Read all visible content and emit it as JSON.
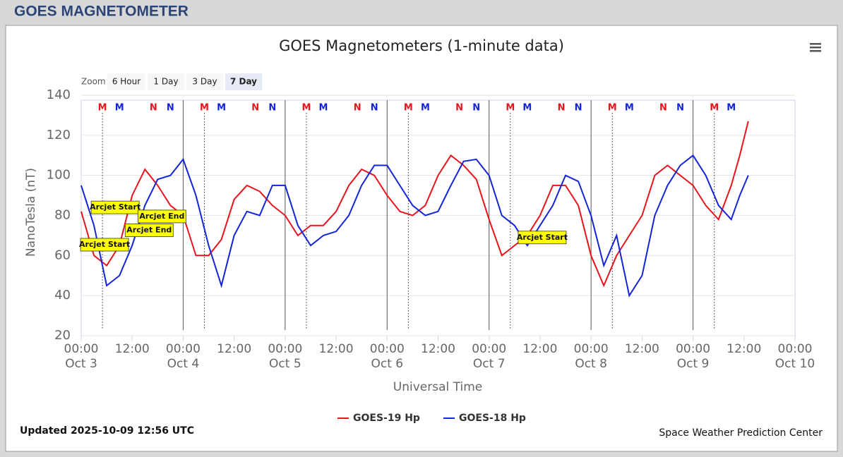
{
  "header": {
    "title": "GOES MAGNETOMETER"
  },
  "chart_data": {
    "type": "line",
    "title": "GOES Magnetometers (1-minute data)",
    "zoom": {
      "label": "Zoom",
      "buttons": [
        "6 Hour",
        "1 Day",
        "3 Day",
        "7 Day"
      ],
      "selected": 3
    },
    "ylabel": "NanoTesla (nT)",
    "xlabel": "Universal Time",
    "ylim": [
      20,
      140
    ],
    "yticks": [
      20,
      40,
      60,
      80,
      100,
      120,
      140
    ],
    "xlim": [
      0,
      168
    ],
    "xticks": [
      {
        "value": 0,
        "label": "00:00"
      },
      {
        "value": 12,
        "label": "12:00"
      },
      {
        "value": 24,
        "label": "00:00"
      },
      {
        "value": 36,
        "label": "12:00"
      },
      {
        "value": 48,
        "label": "00:00"
      },
      {
        "value": 60,
        "label": "12:00"
      },
      {
        "value": 72,
        "label": "00:00"
      },
      {
        "value": 84,
        "label": "12:00"
      },
      {
        "value": 96,
        "label": "00:00"
      },
      {
        "value": 108,
        "label": "12:00"
      },
      {
        "value": 120,
        "label": "00:00"
      },
      {
        "value": 132,
        "label": "12:00"
      },
      {
        "value": 144,
        "label": "00:00"
      },
      {
        "value": 156,
        "label": "12:00"
      },
      {
        "value": 168,
        "label": "00:00"
      }
    ],
    "x_day_labels": [
      {
        "value": 0,
        "label": "Oct 3"
      },
      {
        "value": 24,
        "label": "Oct 4"
      },
      {
        "value": 48,
        "label": "Oct 5"
      },
      {
        "value": 72,
        "label": "Oct 6"
      },
      {
        "value": 96,
        "label": "Oct 7"
      },
      {
        "value": 120,
        "label": "Oct 8"
      },
      {
        "value": 144,
        "label": "Oct 9"
      },
      {
        "value": 168,
        "label": "Oct 10"
      }
    ],
    "x": [
      0,
      3,
      6,
      9,
      12,
      15,
      18,
      21,
      24,
      27,
      30,
      33,
      36,
      39,
      42,
      45,
      48,
      51,
      54,
      57,
      60,
      63,
      66,
      69,
      72,
      75,
      78,
      81,
      84,
      87,
      90,
      93,
      96,
      99,
      102,
      105,
      108,
      111,
      114,
      117,
      120,
      123,
      126,
      129,
      132,
      135,
      138,
      141,
      144,
      147,
      150,
      153,
      155,
      157
    ],
    "series": [
      {
        "name": "GOES-19 Hp",
        "color": "#e8141c",
        "values": [
          82,
          60,
          55,
          65,
          90,
          103,
          95,
          85,
          80,
          60,
          60,
          68,
          88,
          95,
          92,
          85,
          80,
          70,
          75,
          75,
          82,
          95,
          103,
          100,
          90,
          82,
          80,
          85,
          100,
          110,
          105,
          98,
          78,
          60,
          65,
          70,
          80,
          95,
          95,
          85,
          60,
          45,
          60,
          70,
          80,
          100,
          105,
          100,
          95,
          85,
          78,
          95,
          110,
          127
        ]
      },
      {
        "name": "GOES-18 Hp",
        "color": "#1424d8",
        "values": [
          95,
          75,
          45,
          50,
          65,
          85,
          98,
          100,
          108,
          90,
          65,
          45,
          70,
          82,
          80,
          95,
          95,
          75,
          65,
          70,
          72,
          80,
          95,
          105,
          105,
          95,
          85,
          80,
          82,
          95,
          107,
          108,
          100,
          80,
          75,
          65,
          75,
          85,
          100,
          97,
          80,
          55,
          70,
          40,
          50,
          80,
          95,
          105,
          110,
          100,
          85,
          78,
          90,
          100
        ]
      }
    ],
    "markers": [
      {
        "label": "M",
        "color": "#e8141c",
        "x": 5
      },
      {
        "label": "M",
        "color": "#1424d8",
        "x": 9
      },
      {
        "label": "N",
        "color": "#e8141c",
        "x": 17
      },
      {
        "label": "N",
        "color": "#1424d8",
        "x": 21
      },
      {
        "label": "M",
        "color": "#e8141c",
        "x": 29
      },
      {
        "label": "M",
        "color": "#1424d8",
        "x": 33
      },
      {
        "label": "N",
        "color": "#e8141c",
        "x": 41
      },
      {
        "label": "N",
        "color": "#1424d8",
        "x": 45
      },
      {
        "label": "M",
        "color": "#e8141c",
        "x": 53
      },
      {
        "label": "M",
        "color": "#1424d8",
        "x": 57
      },
      {
        "label": "N",
        "color": "#e8141c",
        "x": 65
      },
      {
        "label": "N",
        "color": "#1424d8",
        "x": 69
      },
      {
        "label": "M",
        "color": "#e8141c",
        "x": 77
      },
      {
        "label": "M",
        "color": "#1424d8",
        "x": 81
      },
      {
        "label": "N",
        "color": "#e8141c",
        "x": 89
      },
      {
        "label": "N",
        "color": "#1424d8",
        "x": 93
      },
      {
        "label": "M",
        "color": "#e8141c",
        "x": 101
      },
      {
        "label": "M",
        "color": "#1424d8",
        "x": 105
      },
      {
        "label": "N",
        "color": "#e8141c",
        "x": 113
      },
      {
        "label": "N",
        "color": "#1424d8",
        "x": 117
      },
      {
        "label": "M",
        "color": "#e8141c",
        "x": 125
      },
      {
        "label": "M",
        "color": "#1424d8",
        "x": 129
      },
      {
        "label": "N",
        "color": "#e8141c",
        "x": 137
      },
      {
        "label": "N",
        "color": "#1424d8",
        "x": 141
      },
      {
        "label": "M",
        "color": "#e8141c",
        "x": 149
      },
      {
        "label": "M",
        "color": "#1424d8",
        "x": 153
      }
    ],
    "annotations": [
      {
        "text": "Arcjet Start",
        "x": 8,
        "y": 84
      },
      {
        "text": "Arcjet End",
        "x": 19,
        "y": 79.5
      },
      {
        "text": "Arcjet End",
        "x": 16,
        "y": 72.6
      },
      {
        "text": "Arcjet Start",
        "x": 5.5,
        "y": 65.4
      },
      {
        "text": "Arcjet Start",
        "x": 108.5,
        "y": 69
      }
    ],
    "updated": "Updated 2025-10-09 12:56 UTC",
    "credit": "Space Weather Prediction Center"
  }
}
